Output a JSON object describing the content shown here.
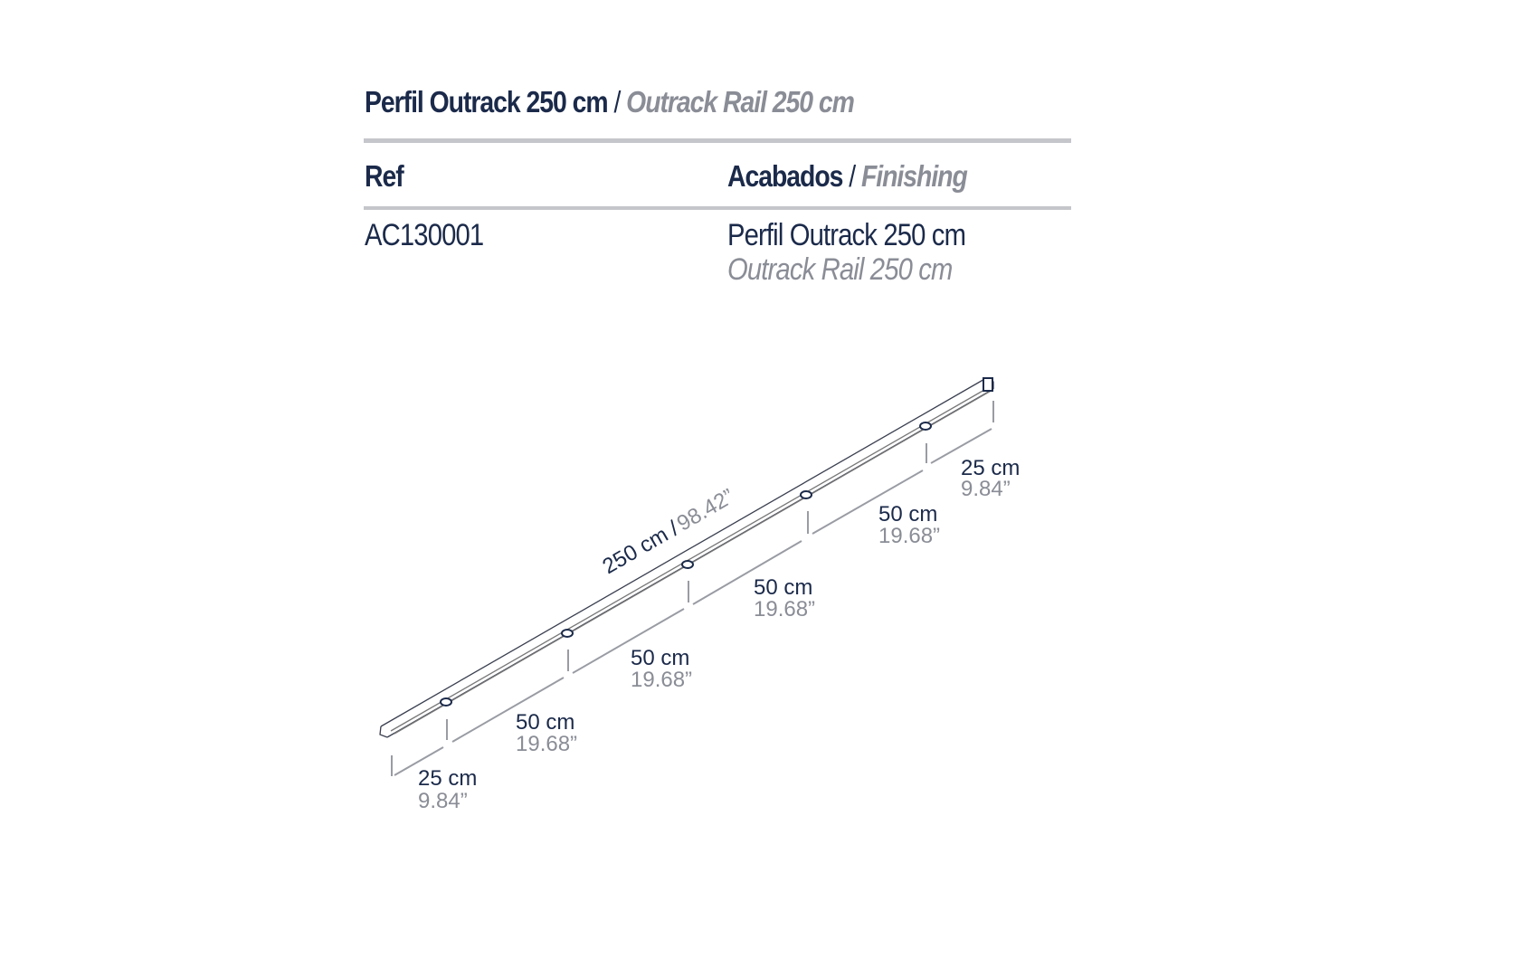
{
  "title": {
    "es": "Perfil Outrack 250 cm",
    "separator": "/",
    "en": "Outrack Rail 250 cm"
  },
  "table": {
    "headers": {
      "ref": "Ref",
      "finishing_es": "Acabados",
      "separator": "/",
      "finishing_en": "Finishing"
    },
    "rows": [
      {
        "ref": "AC130001",
        "finishing_es": "Perfil Outrack 250 cm",
        "finishing_en": "Outrack Rail 250 cm"
      }
    ]
  },
  "drawing": {
    "total": {
      "cm": "250 cm /",
      "in": "98.42”"
    },
    "segments": [
      {
        "cm": "25 cm",
        "in": "9.84”"
      },
      {
        "cm": "50 cm",
        "in": "19.68”"
      },
      {
        "cm": "50 cm",
        "in": "19.68”"
      },
      {
        "cm": "50 cm",
        "in": "19.68”"
      },
      {
        "cm": "50 cm",
        "in": "19.68”"
      },
      {
        "cm": "25 cm",
        "in": "9.84”"
      }
    ]
  },
  "colors": {
    "navy": "#1b2a4a",
    "grey": "#8a8d96",
    "rule": "#c5c6cb"
  }
}
